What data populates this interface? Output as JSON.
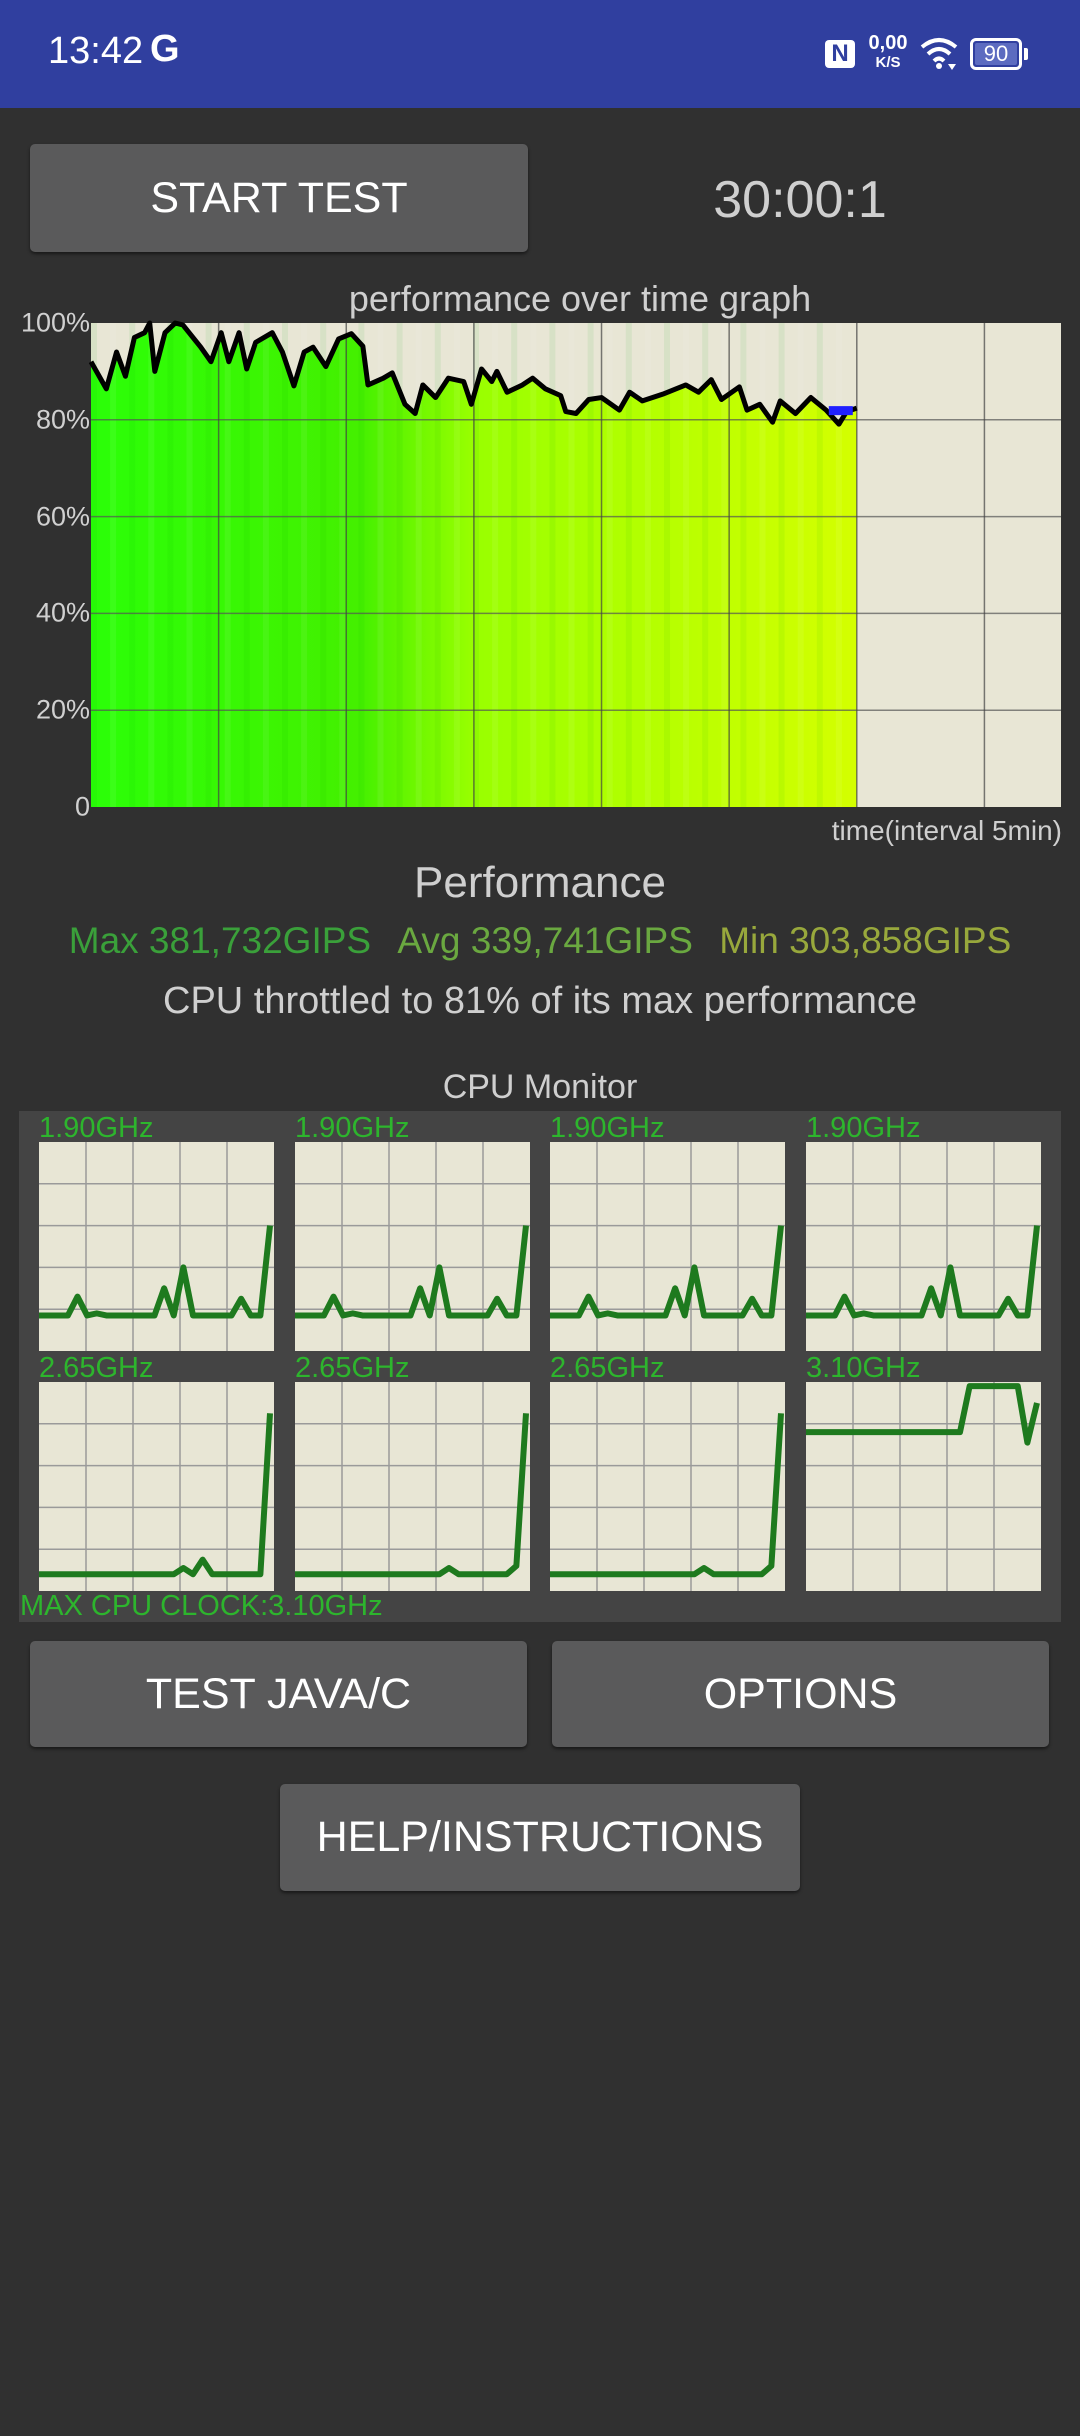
{
  "status_bar": {
    "time": "13:42",
    "app_icon": "google-g-icon",
    "nfc_icon": "nfc-icon",
    "net_speed_value": "0,00",
    "net_speed_unit": "K/S",
    "wifi_icon": "wifi-icon",
    "battery": "90"
  },
  "controls": {
    "start_label": "START TEST",
    "timer": "30:00:1"
  },
  "chart_data": {
    "type": "area",
    "title": "performance over time graph",
    "xlabel": "time(interval 5min)",
    "ylabel": "",
    "y_ticks": [
      "100%",
      "80%",
      "60%",
      "40%",
      "20%",
      "0"
    ],
    "ylim": [
      0,
      100
    ],
    "xlim_minutes": [
      0,
      38
    ],
    "grid": true,
    "colors": {
      "fill_start": "#2bff08",
      "fill_end": "#d4ff00",
      "line": "#000000",
      "background": "#e8e6d5"
    },
    "x": [
      0,
      0.6,
      1,
      1.35,
      1.7,
      2.1,
      2.3,
      2.5,
      2.9,
      3.3,
      3.6,
      4.3,
      4.7,
      5.1,
      5.4,
      5.8,
      6.1,
      6.45,
      7.1,
      7.5,
      7.95,
      8.35,
      8.7,
      9.2,
      9.7,
      10.2,
      10.65,
      10.85,
      11.45,
      11.8,
      12.3,
      12.7,
      13,
      13.5,
      14,
      14.6,
      14.9,
      15.3,
      15.7,
      15.9,
      16.3,
      16.9,
      17.3,
      17.8,
      18.4,
      18.6,
      19,
      19.5,
      20,
      20.7,
      21.1,
      21.6,
      22.4,
      23.3,
      23.8,
      24.3,
      24.7,
      25.4,
      25.7,
      26.2,
      26.7,
      27,
      27.6,
      28.2,
      28.8,
      29.3,
      29.6,
      30
    ],
    "values": [
      92,
      86.4,
      94,
      89,
      97,
      98,
      100,
      90,
      98,
      100,
      99.6,
      95,
      92,
      98,
      92,
      98,
      90.5,
      96,
      98,
      94,
      87,
      94,
      95,
      91,
      96.7,
      97.8,
      95.2,
      87.2,
      88.6,
      89.7,
      83.2,
      81.3,
      87.2,
      84.6,
      88.6,
      87.9,
      83.2,
      90.5,
      87.9,
      90,
      85.7,
      87.2,
      88.6,
      86.4,
      85,
      81.7,
      81.3,
      84.2,
      84.6,
      82,
      85.7,
      83.9,
      85.3,
      87.2,
      85.7,
      88.3,
      84.2,
      86.8,
      82,
      83.2,
      79.5,
      83.9,
      81.3,
      84.6,
      82,
      79.1,
      81.7,
      82.4
    ]
  },
  "performance": {
    "heading": "Performance",
    "max": "Max 381,732GIPS",
    "avg": "Avg 339,741GIPS",
    "min": "Min 303,858GIPS",
    "max_color": "#3aa03a",
    "avg_color": "#6aa840",
    "min_color": "#98a83c",
    "throttle": "CPU throttled to 81% of its max performance"
  },
  "cpu_monitor": {
    "title": "CPU Monitor",
    "max_clock": "MAX CPU CLOCK:3.10GHz",
    "line_color": "#1e7a1e",
    "cores": [
      {
        "freq": "1.90GHz",
        "load": [
          0.17,
          0.17,
          0.17,
          0.17,
          0.26,
          0.17,
          0.18,
          0.17,
          0.17,
          0.17,
          0.17,
          0.17,
          0.17,
          0.3,
          0.17,
          0.4,
          0.17,
          0.17,
          0.17,
          0.17,
          0.17,
          0.25,
          0.17,
          0.17,
          0.6
        ]
      },
      {
        "freq": "1.90GHz",
        "load": [
          0.17,
          0.17,
          0.17,
          0.17,
          0.26,
          0.17,
          0.18,
          0.17,
          0.17,
          0.17,
          0.17,
          0.17,
          0.17,
          0.3,
          0.17,
          0.4,
          0.17,
          0.17,
          0.17,
          0.17,
          0.17,
          0.25,
          0.17,
          0.17,
          0.6
        ]
      },
      {
        "freq": "1.90GHz",
        "load": [
          0.17,
          0.17,
          0.17,
          0.17,
          0.26,
          0.17,
          0.18,
          0.17,
          0.17,
          0.17,
          0.17,
          0.17,
          0.17,
          0.3,
          0.17,
          0.4,
          0.17,
          0.17,
          0.17,
          0.17,
          0.17,
          0.25,
          0.17,
          0.17,
          0.6
        ]
      },
      {
        "freq": "1.90GHz",
        "load": [
          0.17,
          0.17,
          0.17,
          0.17,
          0.26,
          0.17,
          0.18,
          0.17,
          0.17,
          0.17,
          0.17,
          0.17,
          0.17,
          0.3,
          0.17,
          0.4,
          0.17,
          0.17,
          0.17,
          0.17,
          0.17,
          0.25,
          0.17,
          0.17,
          0.6
        ]
      },
      {
        "freq": "2.65GHz",
        "load": [
          0.08,
          0.08,
          0.08,
          0.08,
          0.08,
          0.08,
          0.08,
          0.08,
          0.08,
          0.08,
          0.08,
          0.08,
          0.08,
          0.08,
          0.08,
          0.11,
          0.08,
          0.15,
          0.08,
          0.08,
          0.08,
          0.08,
          0.08,
          0.08,
          0.85
        ]
      },
      {
        "freq": "2.65GHz",
        "load": [
          0.08,
          0.08,
          0.08,
          0.08,
          0.08,
          0.08,
          0.08,
          0.08,
          0.08,
          0.08,
          0.08,
          0.08,
          0.08,
          0.08,
          0.08,
          0.08,
          0.11,
          0.08,
          0.08,
          0.08,
          0.08,
          0.08,
          0.08,
          0.12,
          0.85
        ]
      },
      {
        "freq": "2.65GHz",
        "load": [
          0.08,
          0.08,
          0.08,
          0.08,
          0.08,
          0.08,
          0.08,
          0.08,
          0.08,
          0.08,
          0.08,
          0.08,
          0.08,
          0.08,
          0.08,
          0.08,
          0.11,
          0.08,
          0.08,
          0.08,
          0.08,
          0.08,
          0.08,
          0.12,
          0.85
        ]
      },
      {
        "freq": "3.10GHz",
        "load": [
          0.76,
          0.76,
          0.76,
          0.76,
          0.76,
          0.76,
          0.76,
          0.76,
          0.76,
          0.76,
          0.76,
          0.76,
          0.76,
          0.76,
          0.76,
          0.76,
          0.76,
          0.98,
          0.98,
          0.98,
          0.98,
          0.98,
          0.98,
          0.71,
          0.9
        ]
      }
    ]
  },
  "buttons": {
    "java": "TEST JAVA/C",
    "options": "OPTIONS",
    "help": "HELP/INSTRUCTIONS"
  }
}
